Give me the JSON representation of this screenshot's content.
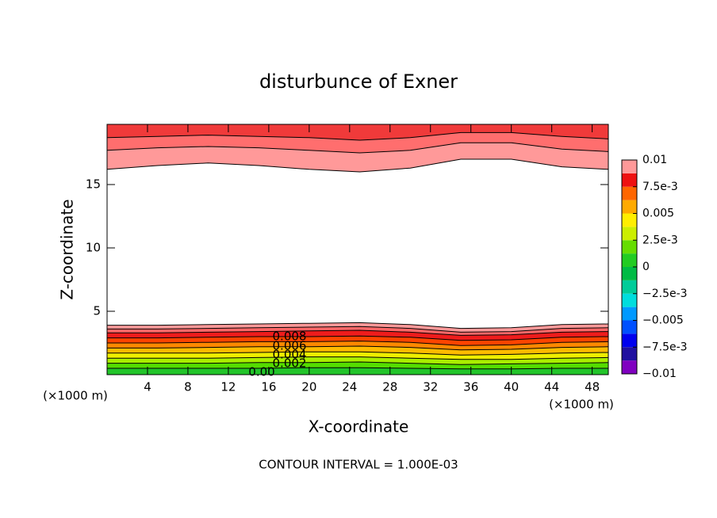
{
  "chart_data": {
    "type": "contour",
    "title": "disturbunce of Exner",
    "xlabel": "X-coordinate",
    "ylabel": "Z-coordinate",
    "x_unit_left": "(×1000 m)",
    "x_unit_right": "(×1000 m)",
    "footer": "CONTOUR INTERVAL = 1.000E-03",
    "xlim": [
      0,
      49.6
    ],
    "ylim": [
      0,
      19.75
    ],
    "xticks": [
      4,
      8,
      12,
      16,
      20,
      24,
      28,
      32,
      36,
      40,
      44,
      48
    ],
    "yticks": [
      5,
      10,
      15
    ],
    "x": [
      0,
      5,
      10,
      15,
      20,
      25,
      30,
      35,
      40,
      45,
      49.6
    ],
    "lower_fills": [
      {
        "color": "#ff9999",
        "z": [
          3.9,
          3.9,
          3.95,
          4.0,
          4.05,
          4.1,
          3.95,
          3.65,
          3.7,
          3.95,
          4.0
        ]
      },
      {
        "color": "#ff6868",
        "z": [
          3.6,
          3.6,
          3.65,
          3.7,
          3.75,
          3.8,
          3.65,
          3.35,
          3.4,
          3.65,
          3.7
        ]
      },
      {
        "color": "#ee1c1c",
        "z": [
          3.3,
          3.3,
          3.35,
          3.4,
          3.45,
          3.5,
          3.35,
          3.1,
          3.15,
          3.35,
          3.4
        ]
      },
      {
        "color": "#ff4400",
        "z": [
          2.9,
          2.9,
          2.95,
          3.0,
          3.0,
          3.05,
          2.95,
          2.7,
          2.75,
          2.95,
          3.0
        ]
      },
      {
        "color": "#ff8800",
        "z": [
          2.5,
          2.5,
          2.55,
          2.6,
          2.6,
          2.65,
          2.55,
          2.3,
          2.35,
          2.55,
          2.6
        ]
      },
      {
        "color": "#ffbb00",
        "z": [
          2.1,
          2.1,
          2.15,
          2.2,
          2.2,
          2.25,
          2.15,
          1.95,
          2.0,
          2.15,
          2.2
        ]
      },
      {
        "color": "#eeee00",
        "z": [
          1.7,
          1.7,
          1.7,
          1.75,
          1.8,
          1.8,
          1.7,
          1.55,
          1.6,
          1.7,
          1.75
        ]
      },
      {
        "color": "#aaee00",
        "z": [
          1.3,
          1.3,
          1.3,
          1.35,
          1.4,
          1.4,
          1.3,
          1.2,
          1.2,
          1.3,
          1.35
        ]
      },
      {
        "color": "#55dd00",
        "z": [
          0.9,
          0.9,
          0.9,
          0.95,
          0.95,
          1.0,
          0.9,
          0.8,
          0.85,
          0.9,
          0.95
        ]
      },
      {
        "color": "#22c42a",
        "z": [
          0.5,
          0.5,
          0.5,
          0.5,
          0.55,
          0.55,
          0.5,
          0.45,
          0.45,
          0.5,
          0.5
        ]
      }
    ],
    "upper_fills": [
      {
        "color": "#ff9999",
        "z": [
          16.2,
          16.5,
          16.7,
          16.5,
          16.2,
          16.0,
          16.3,
          17.0,
          17.0,
          16.4,
          16.2
        ]
      },
      {
        "color": "#ff6e6e",
        "z": [
          17.7,
          17.9,
          18.0,
          17.9,
          17.7,
          17.5,
          17.7,
          18.3,
          18.3,
          17.8,
          17.6
        ]
      },
      {
        "color": "#f03a3a",
        "z": [
          18.7,
          18.8,
          18.9,
          18.8,
          18.7,
          18.5,
          18.7,
          19.1,
          19.1,
          18.8,
          18.6
        ]
      }
    ],
    "contour_labels": [
      "0.008",
      "0.006",
      "0.004",
      "0.002",
      "0.00"
    ],
    "colorbar": {
      "lim": [
        -0.01,
        0.01
      ],
      "colors": [
        "#8000c0",
        "#2010a0",
        "#0000ee",
        "#0050ff",
        "#0099ff",
        "#00dddd",
        "#00cc99",
        "#00bb44",
        "#22cc22",
        "#66dd00",
        "#ccee00",
        "#ffee00",
        "#ffaa00",
        "#ff6600",
        "#ee1111",
        "#ff9999"
      ],
      "ticks": [
        0.01,
        {
          "value": 0.0075,
          "label": "7.5e-3"
        },
        0.005,
        {
          "value": 0.0025,
          "label": "2.5e-3"
        },
        0,
        {
          "value": -0.0025,
          "label": "−2.5e-3"
        },
        {
          "value": -0.005,
          "label": "−0.005"
        },
        {
          "value": -0.0075,
          "label": "−7.5e-3"
        },
        {
          "value": -0.01,
          "label": "−0.01"
        }
      ]
    }
  }
}
